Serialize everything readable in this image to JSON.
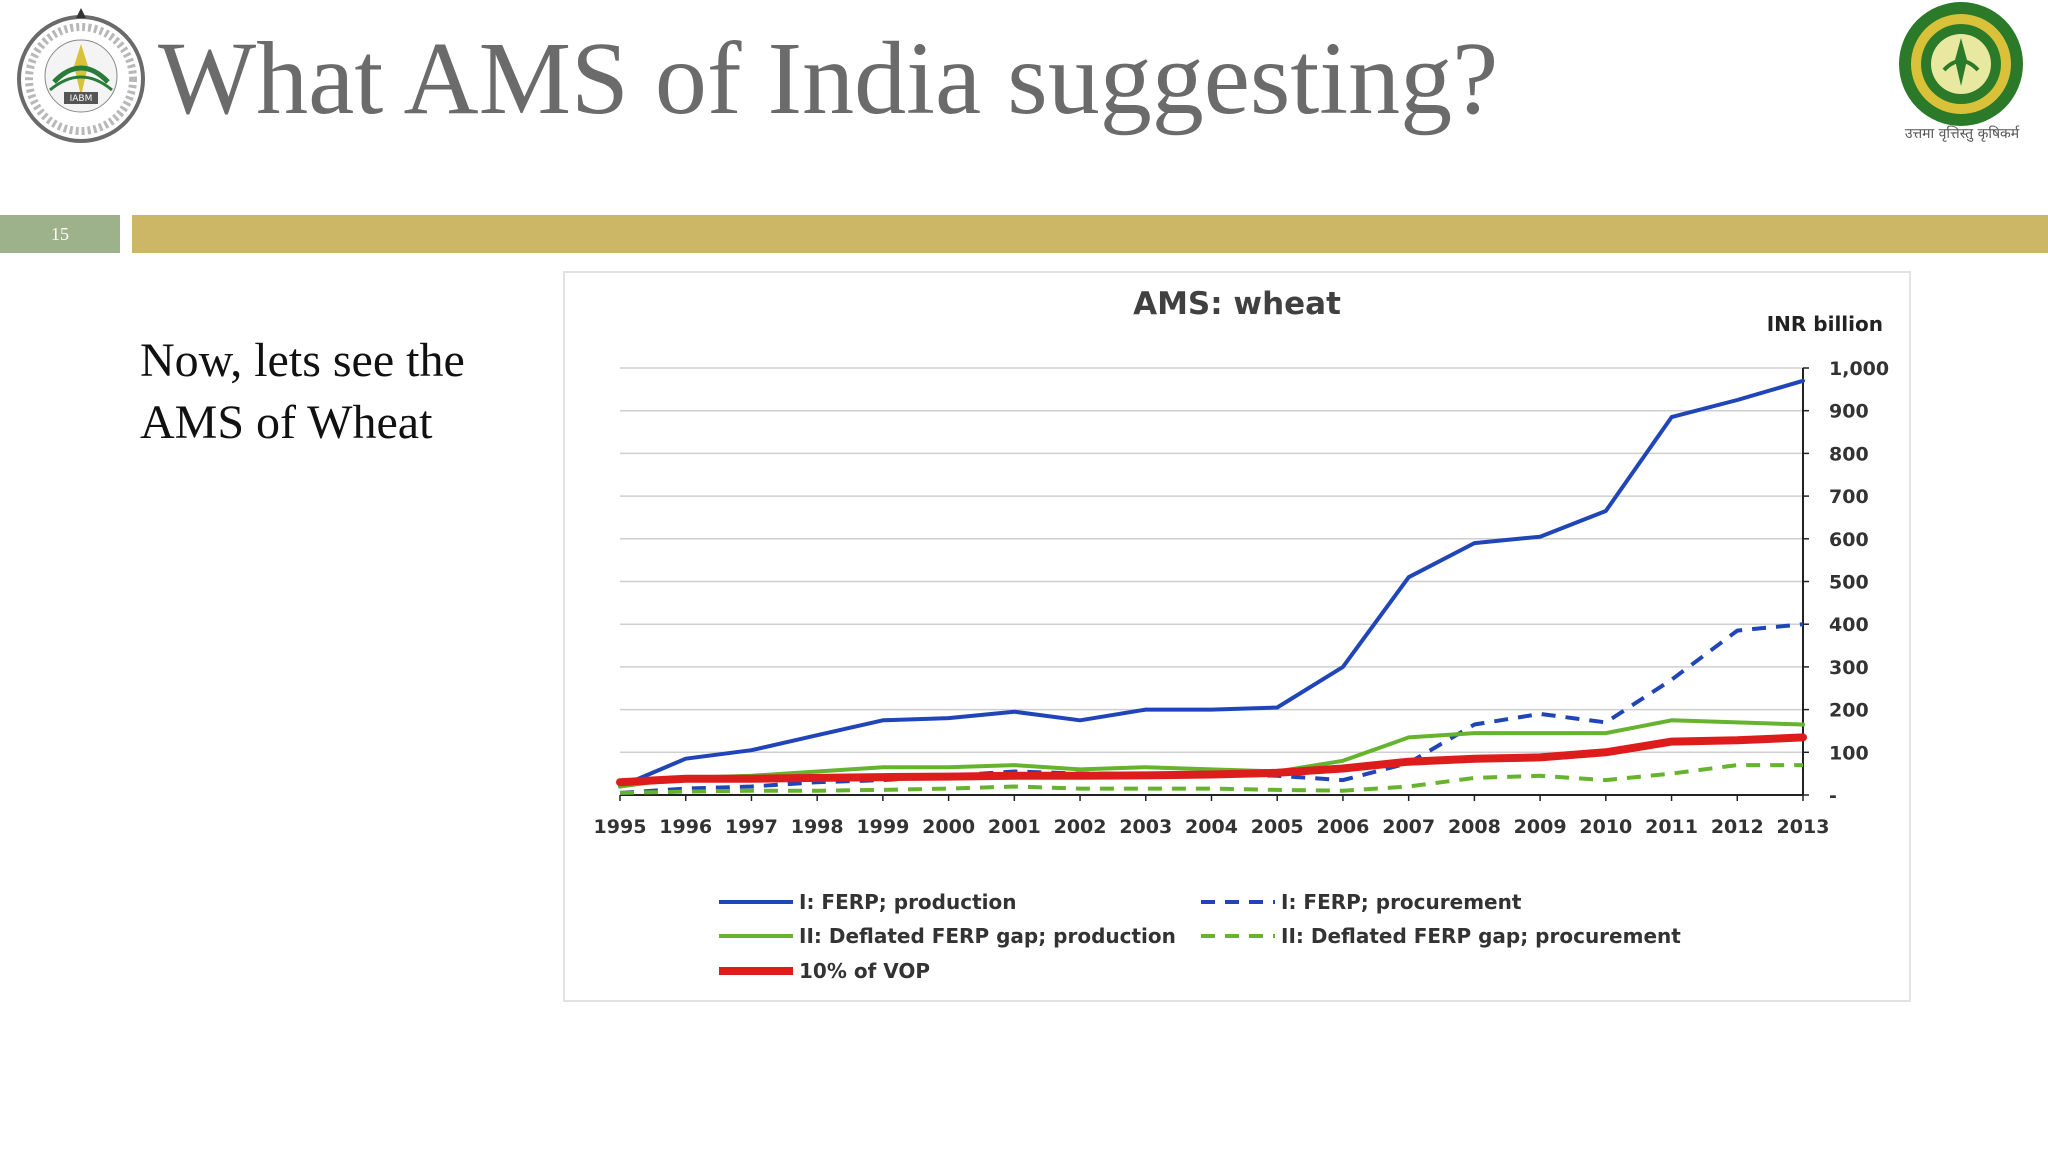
{
  "slide": {
    "title": "What AMS of India suggesting?",
    "number": "15",
    "body_lines": [
      "Now, lets see the",
      "AMS of Wheat"
    ],
    "right_logo_caption": "उत्तमा वृत्तिस्तु कृषिकर्म",
    "left_logo_text": "IABM"
  },
  "colors": {
    "title": "#6b6b6b",
    "number_badge": "#9db28a",
    "accent_bar": "#cbb766",
    "blue": "#1f45b8",
    "green": "#66b32e",
    "red": "#dd1c1c"
  },
  "chart_data": {
    "type": "line",
    "title": "AMS: wheat",
    "ylabel": "INR billion",
    "ylabel_position": "top-right",
    "y_axis_side": "right",
    "ylim": [
      0,
      1000
    ],
    "yticks": [
      0,
      100,
      200,
      300,
      400,
      500,
      600,
      700,
      800,
      900,
      1000
    ],
    "ytick_labels": [
      "-",
      "100",
      "200",
      "300",
      "400",
      "500",
      "600",
      "700",
      "800",
      "900",
      "1,000"
    ],
    "grid": true,
    "legend_position": "bottom",
    "x": [
      "1995",
      "1996",
      "1997",
      "1998",
      "1999",
      "2000",
      "2001",
      "2002",
      "2003",
      "2004",
      "2005",
      "2006",
      "2007",
      "2008",
      "2009",
      "2010",
      "2011",
      "2012",
      "2013"
    ],
    "series": [
      {
        "name": "I: FERP; production",
        "color": "#1f45b8",
        "dash": "solid",
        "width": "normal",
        "values": [
          20,
          85,
          105,
          140,
          175,
          180,
          195,
          175,
          200,
          200,
          205,
          300,
          510,
          590,
          605,
          665,
          885,
          925,
          970
        ]
      },
      {
        "name": "I: FERP; procurement",
        "color": "#1f45b8",
        "dash": "dashed",
        "width": "normal",
        "values": [
          5,
          15,
          20,
          30,
          35,
          45,
          55,
          50,
          50,
          50,
          45,
          35,
          75,
          165,
          190,
          170,
          270,
          385,
          400
        ]
      },
      {
        "name": "II: Deflated FERP gap; production",
        "color": "#66b32e",
        "dash": "solid",
        "width": "normal",
        "values": [
          20,
          40,
          45,
          55,
          65,
          65,
          70,
          60,
          65,
          60,
          55,
          80,
          135,
          145,
          145,
          145,
          175,
          170,
          165
        ]
      },
      {
        "name": "II: Deflated FERP gap; procurement",
        "color": "#66b32e",
        "dash": "dashed",
        "width": "normal",
        "values": [
          5,
          8,
          10,
          10,
          12,
          15,
          20,
          15,
          15,
          15,
          12,
          10,
          20,
          40,
          45,
          35,
          50,
          70,
          70
        ]
      },
      {
        "name": "10% of VOP",
        "color": "#dd1c1c",
        "dash": "solid",
        "width": "thick",
        "values": [
          30,
          38,
          38,
          40,
          42,
          43,
          45,
          45,
          46,
          48,
          52,
          62,
          78,
          85,
          88,
          100,
          125,
          128,
          135
        ]
      }
    ]
  }
}
